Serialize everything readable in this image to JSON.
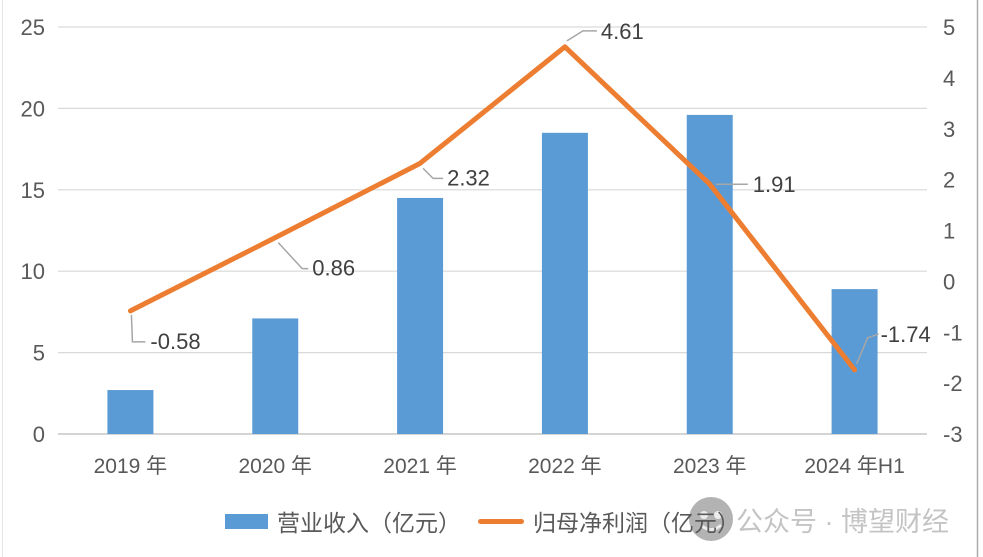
{
  "chart_data": {
    "type": "combo",
    "title": "",
    "categories": [
      "2019 年",
      "2020 年",
      "2021 年",
      "2022 年",
      "2023 年",
      "2024 年H1"
    ],
    "series": [
      {
        "name": "营业收入（亿元）",
        "chart_type": "bar",
        "axis": "left",
        "color": "#5B9BD5",
        "values": [
          2.7,
          7.1,
          14.5,
          18.5,
          19.6,
          8.9
        ]
      },
      {
        "name": "归母净利润（亿元）",
        "chart_type": "line",
        "axis": "right",
        "color": "#ED7D31",
        "values": [
          -0.58,
          0.86,
          2.32,
          4.61,
          1.91,
          -1.74
        ],
        "point_labels": [
          "-0.58",
          "0.86",
          "2.32",
          "4.61",
          "1.91",
          "-1.74"
        ]
      }
    ],
    "left_axis": {
      "min": 0,
      "max": 25,
      "step": 5,
      "ticks": [
        0,
        5,
        10,
        15,
        20,
        25
      ]
    },
    "right_axis": {
      "min": -3,
      "max": 5,
      "step": 1,
      "ticks": [
        -3,
        -2,
        -1,
        0,
        1,
        2,
        3,
        4,
        5
      ]
    },
    "grid": true,
    "legend_position": "bottom"
  },
  "watermark": {
    "text": "公众号 · 博望财经",
    "logo": "panda-logo-icon"
  },
  "colors": {
    "bar": "#5B9BD5",
    "line": "#ED7D31",
    "grid": "#D9D9D9",
    "axis_line": "#C6C6C6",
    "tick_text": "#595959",
    "data_label": "#404040",
    "leader": "#A6A6A6",
    "watermark_text": "#C4C4C4",
    "watermark_logo": "#A6A6A6",
    "frame_line": "#ABABAB"
  }
}
